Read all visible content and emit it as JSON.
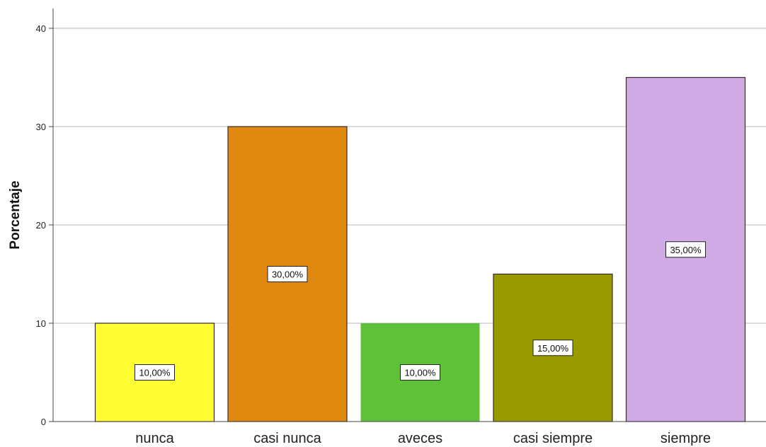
{
  "chart_data": {
    "type": "bar",
    "title": "",
    "xlabel": "",
    "ylabel": "Porcentaje",
    "ylim": [
      0,
      40
    ],
    "yticks": [
      0,
      10,
      20,
      30,
      40
    ],
    "grid": true,
    "legend": "none",
    "categories": [
      "nunca",
      "casi nunca",
      "aveces",
      "casi siempre",
      "siempre"
    ],
    "values": [
      10,
      30,
      10,
      15,
      35
    ],
    "data_labels": [
      "10,00%",
      "30,00%",
      "10,00%",
      "15,00%",
      "35,00%"
    ],
    "colors": [
      "#ffff33",
      "#e08910",
      "#5fc13a",
      "#999900",
      "#cfaae4"
    ]
  }
}
